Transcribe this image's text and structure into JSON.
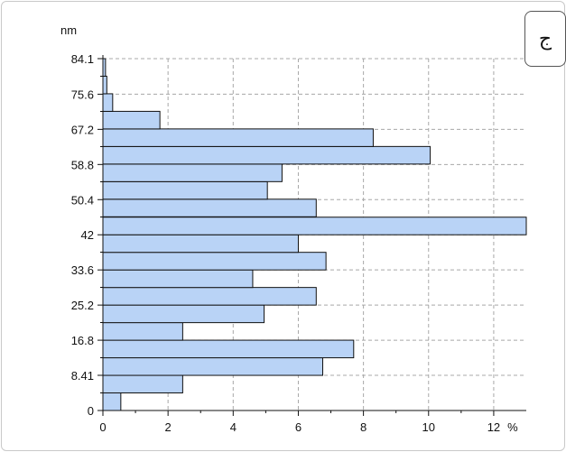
{
  "badge": "ج",
  "chart_data": {
    "type": "bar",
    "orientation": "horizontal",
    "ylabel": "nm",
    "x_unit_label": "%",
    "xlim": [
      0,
      13
    ],
    "ylim": [
      0,
      84.1
    ],
    "x_ticks": [
      "0",
      "2",
      "4",
      "6",
      "8",
      "10",
      "12"
    ],
    "x_tick_values": [
      0,
      2,
      4,
      6,
      8,
      10,
      12
    ],
    "y_ticks": [
      "0",
      "8.41",
      "16.8",
      "25.2",
      "33.6",
      "42",
      "50.4",
      "58.8",
      "67.2",
      "75.6",
      "84.1"
    ],
    "y_tick_values": [
      0,
      8.41,
      16.8,
      25.2,
      33.6,
      42,
      50.4,
      58.8,
      67.2,
      75.6,
      84.1
    ],
    "grid": true,
    "bar_color": "#b9d3f6",
    "bin_width": 4.205,
    "bins": [
      0,
      4.2,
      8.4,
      12.6,
      16.8,
      21.0,
      25.2,
      29.4,
      33.6,
      37.8,
      42.0,
      46.3,
      50.5,
      54.7,
      58.9,
      63.1,
      67.3,
      71.5,
      75.7,
      79.9
    ],
    "values": [
      0.55,
      2.45,
      6.75,
      7.7,
      2.45,
      4.95,
      6.55,
      4.6,
      6.85,
      6.0,
      13.0,
      6.55,
      5.05,
      5.5,
      10.05,
      8.3,
      1.75,
      0.3,
      0.12,
      0.08
    ]
  }
}
